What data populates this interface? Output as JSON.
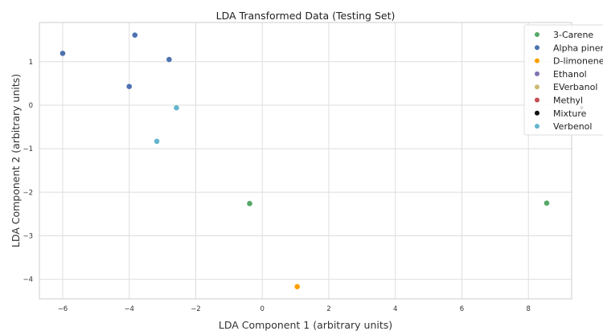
{
  "chart_data": {
    "type": "scatter",
    "title": "LDA Transformed Data (Testing Set)",
    "xlabel": "LDA Component 1 (arbitrary units)",
    "ylabel": "LDA Component 2 (arbitrary units)",
    "xlim": [
      -6.7,
      9.3
    ],
    "ylim": [
      -4.45,
      1.9
    ],
    "xticks": [
      -6,
      -4,
      -2,
      0,
      2,
      4,
      6,
      8
    ],
    "yticks": [
      1,
      0,
      -1,
      -2,
      -3,
      -4
    ],
    "xtick_labels": [
      "−6",
      "−4",
      "−2",
      "0",
      "2",
      "4",
      "6",
      "8"
    ],
    "ytick_labels": [
      "1",
      "0",
      "−1",
      "−2",
      "−3",
      "−4"
    ],
    "grid": true,
    "legend_position": "top-right",
    "series": [
      {
        "name": "3-Carene",
        "color": "#55a868",
        "points": [
          [
            -0.38,
            -2.26
          ],
          [
            8.55,
            -2.25
          ]
        ]
      },
      {
        "name": "Alpha pinen",
        "color": "#4c72b0",
        "points": [
          [
            -6.0,
            1.19
          ],
          [
            -3.83,
            1.61
          ],
          [
            -4.0,
            0.43
          ],
          [
            -2.8,
            1.05
          ]
        ]
      },
      {
        "name": "D-limonene",
        "color": "#ff9f00",
        "points": [
          [
            1.05,
            -4.17
          ]
        ]
      },
      {
        "name": "Ethanol",
        "color": "#8172b3",
        "points": []
      },
      {
        "name": "EVerbanol",
        "color": "#ccb974",
        "points": []
      },
      {
        "name": "Methyl",
        "color": "#c44e52",
        "points": []
      },
      {
        "name": "Mixture",
        "color": "#111111",
        "points": [
          [
            9.6,
            -0.06
          ]
        ]
      },
      {
        "name": "Verbenol",
        "color": "#64b5cd",
        "points": [
          [
            -2.58,
            -0.06
          ],
          [
            -3.17,
            -0.83
          ]
        ]
      }
    ]
  }
}
